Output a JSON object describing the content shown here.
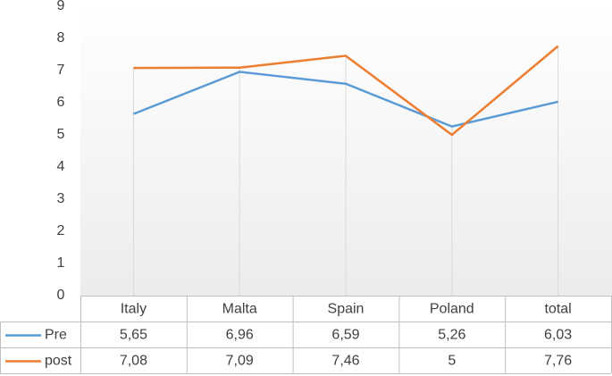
{
  "chart_data": {
    "type": "line",
    "categories": [
      "Italy",
      "Malta",
      "Spain",
      "Poland",
      "total"
    ],
    "series": [
      {
        "name": "Pre",
        "color": "#5b9bd5",
        "values": [
          5.65,
          6.96,
          6.59,
          5.26,
          6.03
        ],
        "value_labels": [
          "5,65",
          "6,96",
          "6,59",
          "5,26",
          "6,03"
        ]
      },
      {
        "name": "post",
        "color": "#ed7d31",
        "values": [
          7.08,
          7.09,
          7.46,
          5,
          7.76
        ],
        "value_labels": [
          "7,08",
          "7,09",
          "7,46",
          "5",
          "7,76"
        ]
      }
    ],
    "ylim": [
      0,
      9
    ],
    "yticks": [
      0,
      1,
      2,
      3,
      4,
      5,
      6,
      7,
      8,
      9
    ]
  }
}
